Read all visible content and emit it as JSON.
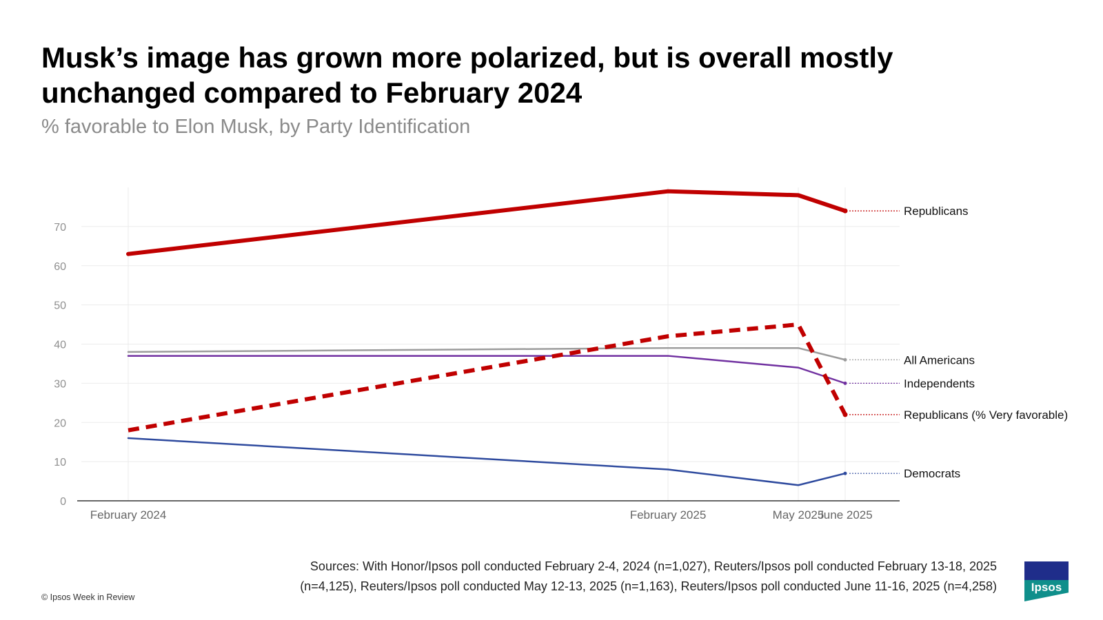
{
  "header": {
    "title": "Musk’s image has grown more polarized, but is overall mostly unchanged compared to February 2024",
    "subtitle": "% favorable to Elon Musk, by Party Identification"
  },
  "chart_data": {
    "type": "line",
    "title": "Musk’s image has grown more polarized, but is overall mostly unchanged compared to February 2024",
    "subtitle": "% favorable to Elon Musk, by Party Identification",
    "xlabel": "",
    "ylabel": "",
    "x": [
      "2024-02-03",
      "2025-02-15",
      "2025-05-12",
      "2025-06-13"
    ],
    "x_tick_labels": [
      "February 2024",
      "February 2025",
      "May 2025",
      "June 2025"
    ],
    "y_ticks": [
      0,
      10,
      20,
      30,
      40,
      50,
      60,
      70
    ],
    "ylim": [
      0,
      80
    ],
    "grid": true,
    "legend": "direct labels at right end of lines",
    "series": [
      {
        "name": "Republicans",
        "values": [
          63,
          79,
          78,
          74
        ],
        "color": "#c00000",
        "style": "solid-thick"
      },
      {
        "name": "All Americans",
        "values": [
          38,
          39,
          39,
          36
        ],
        "color": "#9b9b9b",
        "style": "solid"
      },
      {
        "name": "Independents",
        "values": [
          37,
          37,
          34,
          30
        ],
        "color": "#7030a0",
        "style": "solid"
      },
      {
        "name": "Republicans (% Very favorable)",
        "values": [
          18,
          42,
          45,
          22
        ],
        "color": "#c00000",
        "style": "dashed-thick"
      },
      {
        "name": "Democrats",
        "values": [
          16,
          8,
          4,
          7
        ],
        "color": "#2e4a9e",
        "style": "solid"
      }
    ]
  },
  "footer": {
    "sources": "Sources: With Honor/Ipsos poll conducted February 2-4, 2024 (n=1,027), Reuters/Ipsos poll conducted February 13-18, 2025 (n=4,125), Reuters/Ipsos poll conducted May 12-13, 2025 (n=1,163), Reuters/Ipsos poll conducted June 11-16, 2025 (n=4,258)",
    "copyright": "© Ipsos Week in Review",
    "logo_text": "Ipsos"
  }
}
